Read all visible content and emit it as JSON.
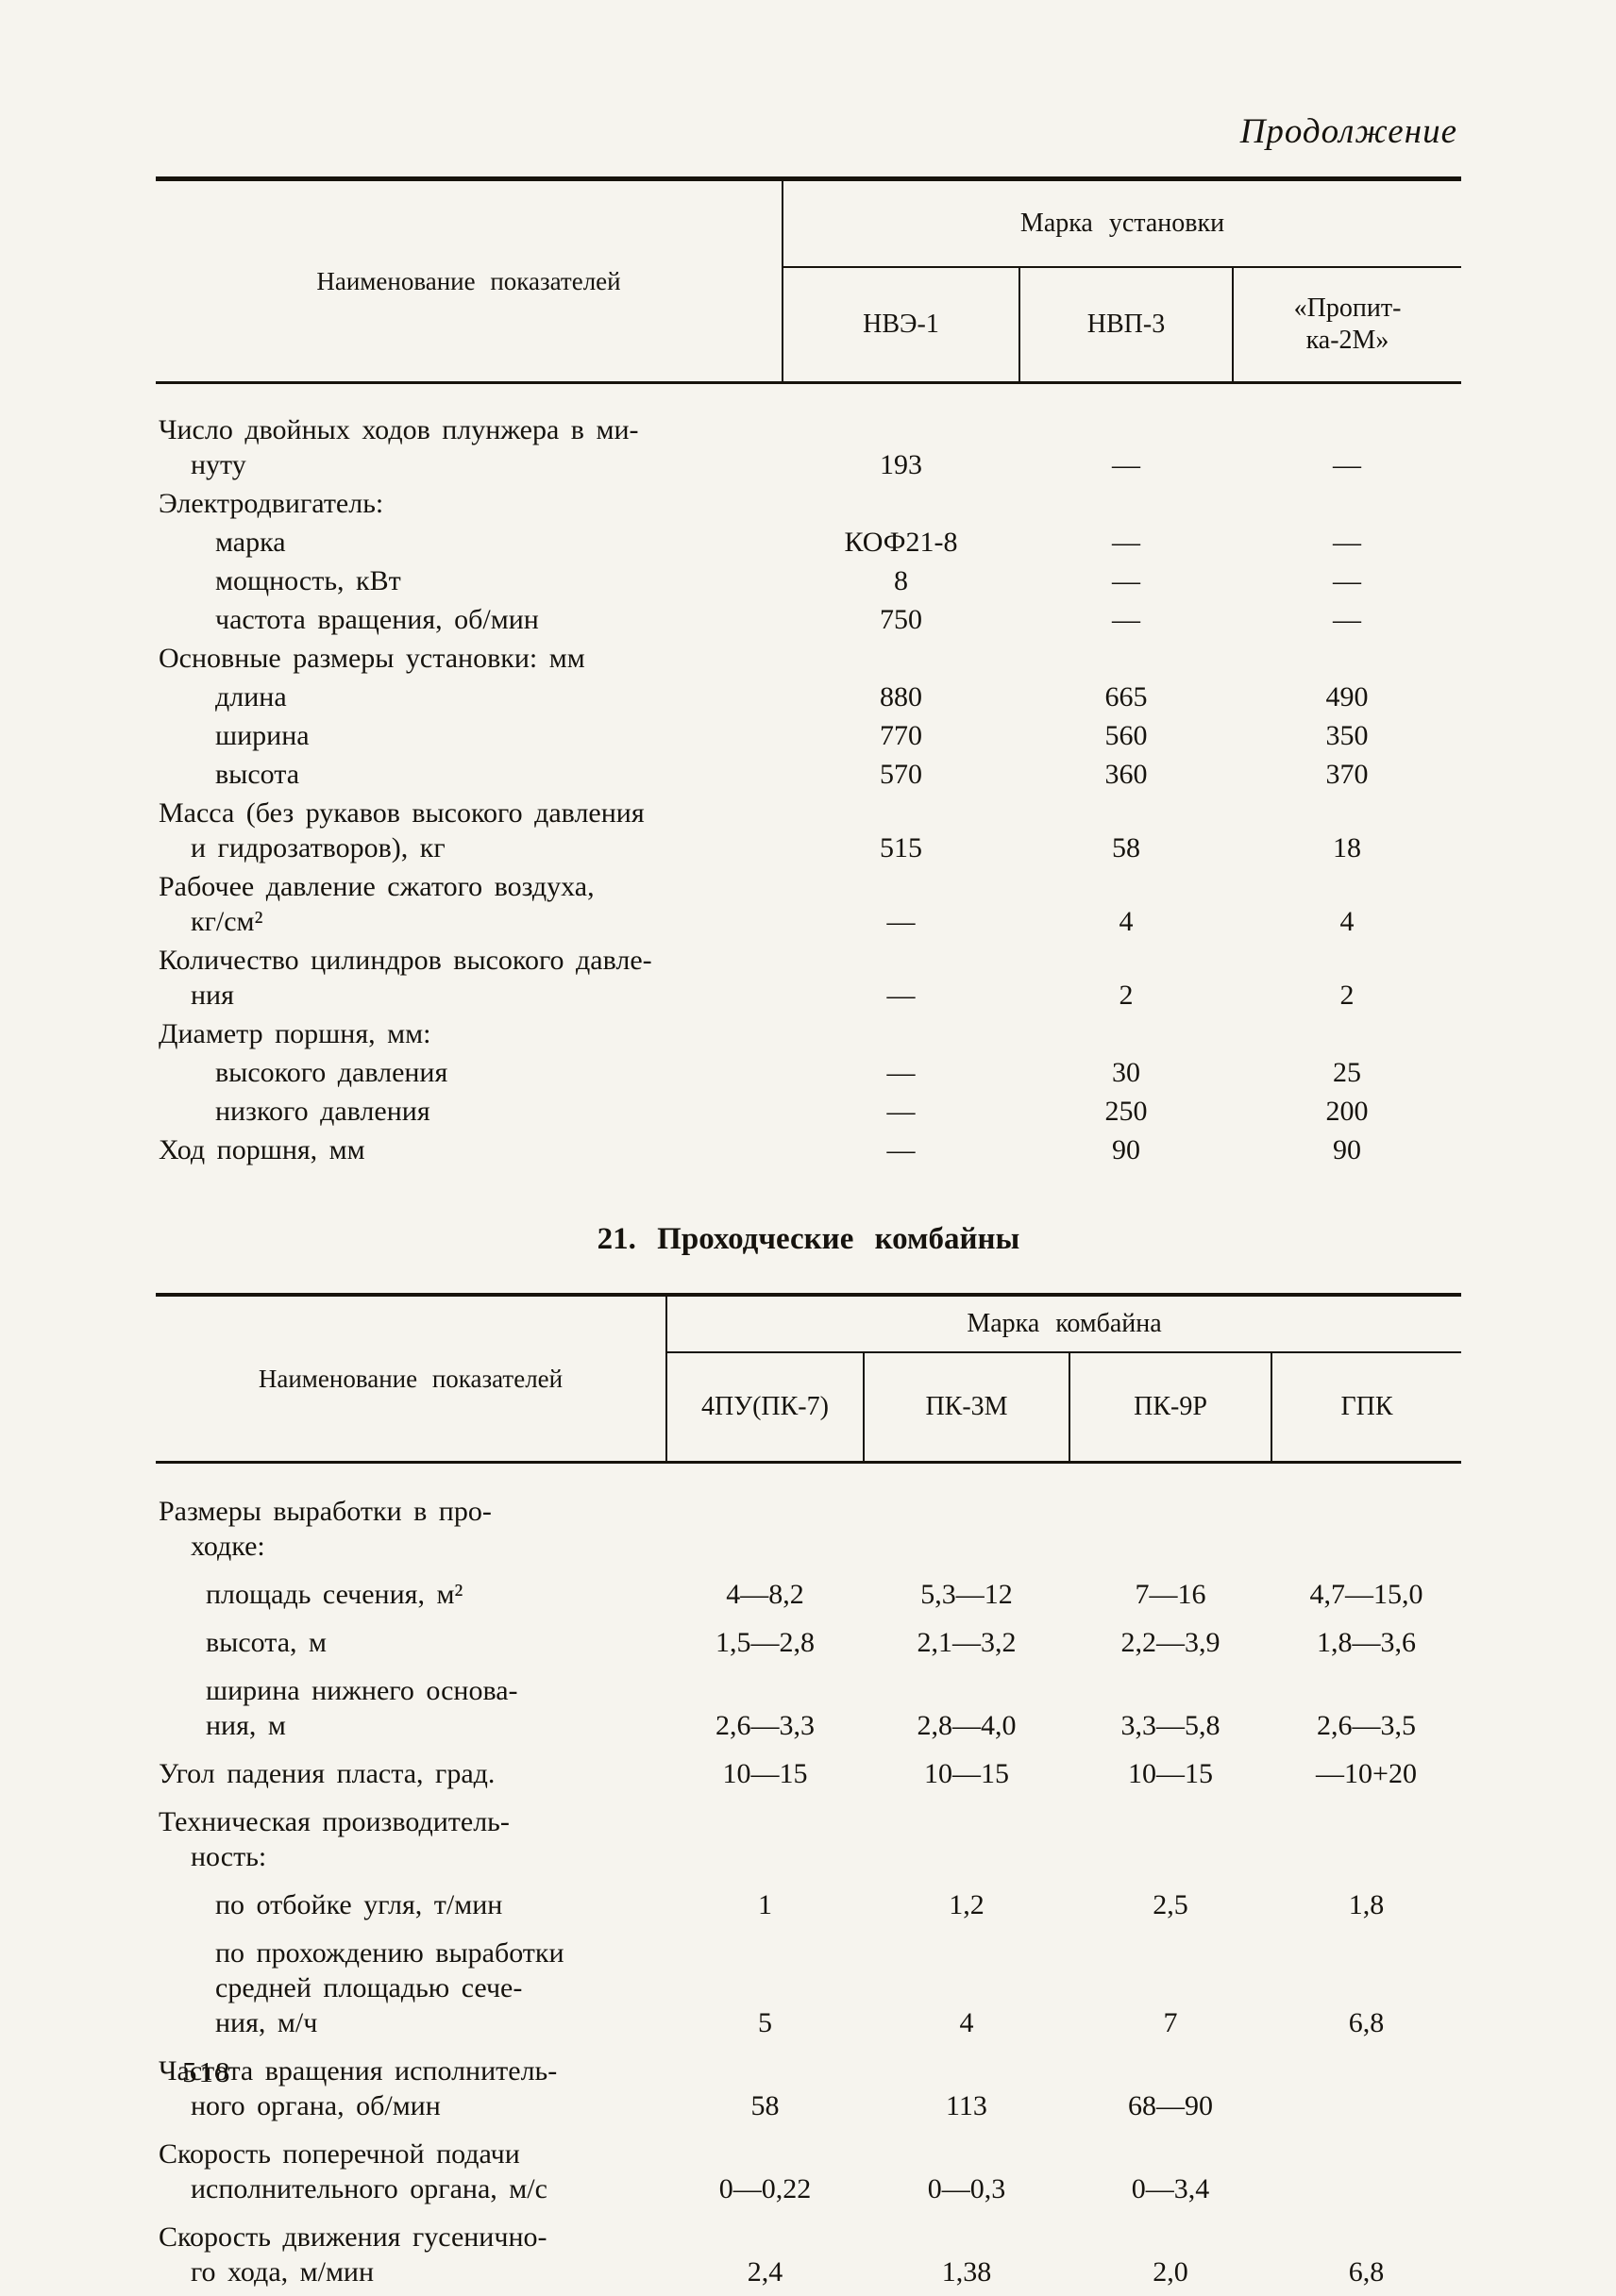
{
  "page": {
    "continuation": "Продолжение",
    "number": "518"
  },
  "section": {
    "heading": "21. Проходческие комбайны"
  },
  "table1": {
    "stub_header": "Наименование показателей",
    "group_header": "Марка установки",
    "columns": [
      "НВЭ-1",
      "НВП-3",
      "«Пропит-\nка-2М»"
    ],
    "rows": [
      {
        "lines": [
          "Число двойных ходов плунжера в ми-",
          "нуту"
        ],
        "values": [
          "193",
          "—",
          "—"
        ]
      },
      {
        "lines": [
          "Электродвигатель:"
        ],
        "values": [
          "",
          "",
          ""
        ]
      },
      {
        "lines": [
          "марка"
        ],
        "values": [
          "КОФ21-8",
          "—",
          "—"
        ]
      },
      {
        "lines": [
          "мощность, кВт"
        ],
        "values": [
          "8",
          "—",
          "—"
        ]
      },
      {
        "lines": [
          "частота вращения, об/мин"
        ],
        "values": [
          "750",
          "—",
          "—"
        ]
      },
      {
        "lines": [
          "Основные размеры установки: мм"
        ],
        "values": [
          "",
          "",
          ""
        ]
      },
      {
        "lines": [
          "длина"
        ],
        "values": [
          "880",
          "665",
          "490"
        ]
      },
      {
        "lines": [
          "ширина"
        ],
        "values": [
          "770",
          "560",
          "350"
        ]
      },
      {
        "lines": [
          "высота"
        ],
        "values": [
          "570",
          "360",
          "370"
        ]
      },
      {
        "lines": [
          "Масса (без рукавов высокого давления",
          "и гидрозатворов), кг"
        ],
        "values": [
          "515",
          "58",
          "18"
        ]
      },
      {
        "lines": [
          "Рабочее давление сжатого воздуха,",
          "кг/см²"
        ],
        "values": [
          "—",
          "4",
          "4"
        ]
      },
      {
        "lines": [
          "Количество цилиндров высокого давле-",
          "ния"
        ],
        "values": [
          "—",
          "2",
          "2"
        ]
      },
      {
        "lines": [
          "Диаметр поршня, мм:"
        ],
        "values": [
          "",
          "",
          ""
        ]
      },
      {
        "lines": [
          "высокого давления"
        ],
        "values": [
          "—",
          "30",
          "25"
        ]
      },
      {
        "lines": [
          "низкого давления"
        ],
        "values": [
          "—",
          "250",
          "200"
        ]
      },
      {
        "lines": [
          "Ход поршня, мм"
        ],
        "values": [
          "—",
          "90",
          "90"
        ]
      }
    ]
  },
  "table2": {
    "stub_header": "Наименование показателей",
    "group_header": "Марка комбайна",
    "columns": [
      "4ПУ(ПК-7)",
      "ПК-3М",
      "ПК-9Р",
      "ГПК"
    ],
    "rows": [
      {
        "lines": [
          "Размеры выработки в про-",
          "ходке:"
        ],
        "values": [
          "",
          "",
          "",
          ""
        ]
      },
      {
        "lines": [
          "площадь сечения, м²"
        ],
        "values": [
          "4—8,2",
          "5,3—12",
          "7—16",
          "4,7—15,0"
        ]
      },
      {
        "lines": [
          "высота, м"
        ],
        "values": [
          "1,5—2,8",
          "2,1—3,2",
          "2,2—3,9",
          "1,8—3,6"
        ]
      },
      {
        "lines": [
          "ширина нижнего основа-",
          "ния, м"
        ],
        "values": [
          "2,6—3,3",
          "2,8—4,0",
          "3,3—5,8",
          "2,6—3,5"
        ]
      },
      {
        "lines": [
          "Угол падения пласта, град."
        ],
        "values": [
          "10—15",
          "10—15",
          "10—15",
          "—10+20"
        ]
      },
      {
        "lines": [
          "Техническая производитель-",
          "ность:"
        ],
        "values": [
          "",
          "",
          "",
          ""
        ]
      },
      {
        "lines": [
          "по отбойке угля, т/мин"
        ],
        "values": [
          "1",
          "1,2",
          "2,5",
          "1,8"
        ]
      },
      {
        "lines": [
          "по прохождению выработки",
          "средней площадью сече-",
          "ния, м/ч"
        ],
        "values": [
          "5",
          "4",
          "7",
          "6,8"
        ]
      },
      {
        "lines": [
          "Частота вращения исполнитель-",
          "ного органа, об/мин"
        ],
        "values": [
          "58",
          "113",
          "68—90",
          ""
        ]
      },
      {
        "lines": [
          "Скорость поперечной подачи",
          "исполнительного органа, м/с"
        ],
        "values": [
          "0—0,22",
          "0—0,3",
          "0—3,4",
          ""
        ]
      },
      {
        "lines": [
          "Скорость движения гусенично-",
          "го хода, м/мин"
        ],
        "values": [
          "2,4",
          "1,38",
          "2,0",
          "6,8"
        ]
      }
    ]
  }
}
